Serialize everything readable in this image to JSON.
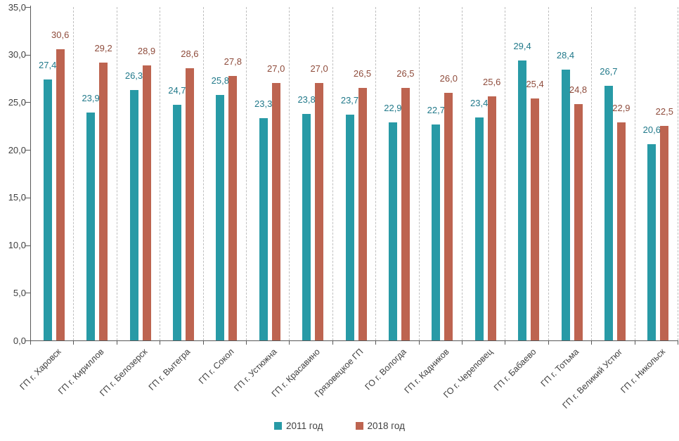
{
  "chart_data": {
    "type": "bar",
    "title": "",
    "categories": [
      "ГП г. Харовск",
      "ГП г. Кириллов",
      "ГП г. Белозерск",
      "ГП г. Вытегра",
      "ГП г. Сокол",
      "ГП г. Устюжна",
      "ГП г. Красавино",
      "Грязовецкое ГП",
      "ГО г. Вологда",
      "ГП г. Кадников",
      "ГО г. Череповец",
      "ГП г. Бабаево",
      "ГП г. Тотьма",
      "ГП г. Великий Устюг",
      "ГП г. Никольск"
    ],
    "series": [
      {
        "name": "2011 год",
        "color": "#289AA6",
        "label_color": "#21798A",
        "values": [
          27.4,
          23.9,
          26.3,
          24.7,
          25.8,
          23.3,
          23.8,
          23.7,
          22.9,
          22.7,
          23.4,
          29.4,
          28.4,
          26.7,
          20.6
        ]
      },
      {
        "name": "2018 год",
        "color": "#BD6450",
        "label_color": "#8E4B3B",
        "values": [
          30.6,
          29.2,
          28.9,
          28.6,
          27.8,
          27.0,
          27.0,
          26.5,
          26.5,
          26.0,
          25.6,
          25.4,
          24.8,
          22.9,
          22.5
        ]
      }
    ],
    "y_axis": {
      "min": 0,
      "max": 35,
      "step": 5,
      "tick_labels": [
        "0,0",
        "5,0",
        "10,0",
        "15,0",
        "20,0",
        "25,0",
        "30,0",
        "35,0"
      ]
    },
    "decimal_separator": ",",
    "grid": "vertical-dashed",
    "legend_position": "bottom",
    "axis_color": "#595959",
    "text_color": "#404040",
    "gridline_color": "#BFBFBF"
  }
}
